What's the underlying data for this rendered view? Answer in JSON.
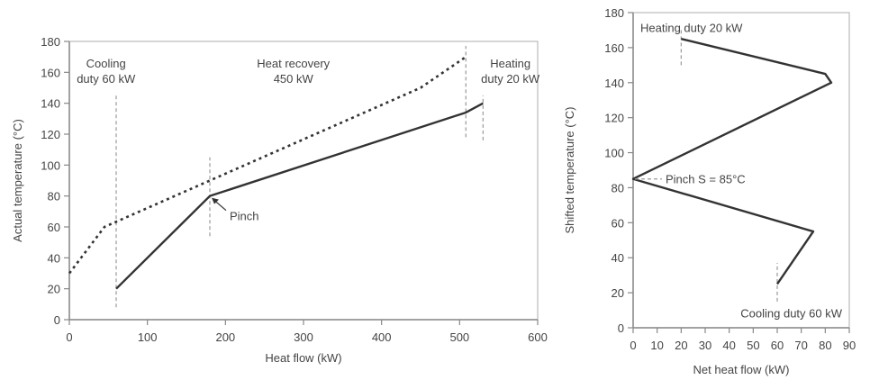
{
  "chart_data": [
    {
      "type": "line",
      "xlabel": "Heat flow (kW)",
      "ylabel": "Actual temperature (°C)",
      "xlim": [
        0,
        600
      ],
      "ylim": [
        0,
        180
      ],
      "xticks": [
        0,
        100,
        200,
        300,
        400,
        500,
        600
      ],
      "yticks": [
        0,
        20,
        40,
        60,
        80,
        100,
        120,
        140,
        160,
        180
      ],
      "grid": false,
      "series": [
        {
          "style": "dotted",
          "color": "#333333",
          "points": [
            [
              0,
              30
            ],
            [
              45,
              60
            ],
            [
              180,
              90
            ],
            [
              450,
              150
            ],
            [
              508,
              170
            ]
          ]
        },
        {
          "style": "solid",
          "color": "#333333",
          "points": [
            [
              60,
              20
            ],
            [
              180,
              80
            ],
            [
              508,
              134
            ],
            [
              530,
              140
            ]
          ]
        }
      ],
      "guides": [
        {
          "x": 60,
          "from": 8,
          "to": 145
        },
        {
          "x": 180,
          "from": 54,
          "to": 105
        },
        {
          "x": 508,
          "from": 118,
          "to": 177
        },
        {
          "x": 530,
          "from": 116,
          "to": 145
        }
      ],
      "annotations": [
        {
          "lines": [
            "Cooling",
            "duty 60 kW"
          ],
          "x": 47,
          "y": 163
        },
        {
          "lines": [
            "Heat recovery",
            "450 kW"
          ],
          "x": 287,
          "y": 163
        },
        {
          "lines": [
            "Heating",
            "duty 20 kW"
          ],
          "x": 565,
          "y": 163
        }
      ],
      "pinch_label": {
        "text": "Pinch",
        "point": [
          180,
          80
        ]
      }
    },
    {
      "type": "line",
      "xlabel": "Net heat flow (kW)",
      "ylabel": "Shifted temperature (°C)",
      "xlim": [
        0,
        90
      ],
      "ylim": [
        0,
        180
      ],
      "xticks": [
        0,
        10,
        20,
        30,
        40,
        50,
        60,
        70,
        80,
        90
      ],
      "yticks": [
        0,
        20,
        40,
        60,
        80,
        100,
        120,
        140,
        160,
        180
      ],
      "grid": false,
      "series": [
        {
          "style": "solid",
          "color": "#333333",
          "points": [
            [
              20,
              165
            ],
            [
              80,
              145
            ],
            [
              82.5,
              140
            ],
            [
              0,
              85
            ],
            [
              75,
              55
            ],
            [
              60,
              25
            ]
          ]
        }
      ],
      "guides": [
        {
          "x": 20,
          "from": 150,
          "to": 171
        },
        {
          "x": 60,
          "from": 15,
          "to": 37
        }
      ],
      "annotations": [
        {
          "text": "Heating duty 20 kW",
          "x": 3,
          "y": 171
        },
        {
          "text": "Cooling duty 60 kW",
          "x": 90,
          "y": 8
        }
      ],
      "pinch_label": {
        "text": "Pinch S = 85°C",
        "point": [
          0,
          85
        ]
      }
    }
  ]
}
